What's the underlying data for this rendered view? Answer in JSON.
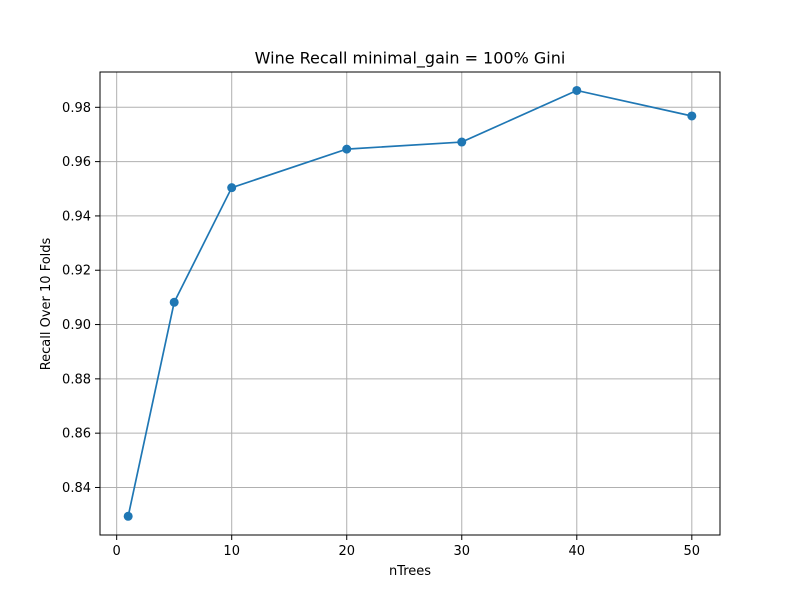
{
  "chart_data": {
    "type": "line",
    "title": "Wine Recall minimal_gain = 100% Gini",
    "xlabel": "nTrees",
    "ylabel": "Recall Over 10 Folds",
    "xlim": [
      -1.45,
      52.45
    ],
    "ylim": [
      0.8225,
      0.993
    ],
    "x_ticks": [
      0,
      10,
      20,
      30,
      40,
      50
    ],
    "x_tick_labels": [
      "0",
      "10",
      "20",
      "30",
      "40",
      "50"
    ],
    "y_ticks": [
      0.84,
      0.86,
      0.88,
      0.9,
      0.92,
      0.94,
      0.96,
      0.98
    ],
    "y_tick_labels": [
      "0.84",
      "0.86",
      "0.88",
      "0.90",
      "0.92",
      "0.94",
      "0.96",
      "0.98"
    ],
    "grid": true,
    "series": [
      {
        "color": "#1f77b4",
        "marker": "circle",
        "x": [
          1,
          5,
          10,
          20,
          30,
          40,
          50
        ],
        "y": [
          0.8294,
          0.9082,
          0.9504,
          0.9646,
          0.9672,
          0.9862,
          0.9768
        ]
      }
    ]
  }
}
